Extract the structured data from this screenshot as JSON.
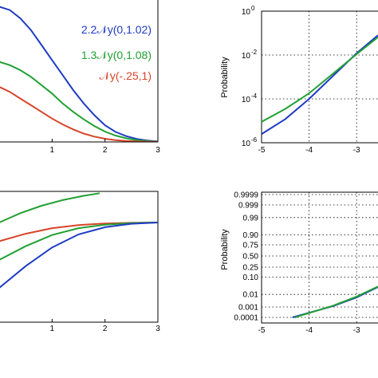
{
  "chart_data": [
    {
      "type": "line",
      "panel": "top-left",
      "x_ticks": [
        "1",
        "2",
        "3"
      ],
      "xlim": [
        0,
        3
      ],
      "legend_entries": [
        "2.2𝒩y(0,1.02)",
        "1.3𝒩y(0,1.08)",
        "𝒩y(-.25,1)"
      ],
      "legend_placement": "top-right",
      "series": [
        {
          "name": "2.2𝒩y(0,1.02)",
          "color": "#1f3cc4",
          "x": [
            0,
            0.2,
            0.4,
            0.6,
            0.8,
            1.0,
            1.2,
            1.4,
            1.6,
            1.8,
            2.0,
            2.2,
            2.4,
            2.6,
            2.8,
            3.0
          ],
          "y": [
            0.81,
            0.79,
            0.74,
            0.67,
            0.58,
            0.49,
            0.4,
            0.31,
            0.23,
            0.16,
            0.1,
            0.06,
            0.035,
            0.018,
            0.008,
            0.003
          ]
        },
        {
          "name": "1.3𝒩y(0,1.08)",
          "color": "#22a033",
          "x": [
            0,
            0.2,
            0.4,
            0.6,
            0.8,
            1.0,
            1.2,
            1.4,
            1.6,
            1.8,
            2.0,
            2.2,
            2.4,
            2.6,
            2.8,
            3.0
          ],
          "y": [
            0.48,
            0.46,
            0.43,
            0.39,
            0.34,
            0.29,
            0.23,
            0.18,
            0.135,
            0.095,
            0.062,
            0.038,
            0.022,
            0.011,
            0.005,
            0.002
          ]
        },
        {
          "name": "𝒩y(-.25,1)",
          "color": "#d6452a",
          "x": [
            0,
            0.2,
            0.4,
            0.6,
            0.8,
            1.0,
            1.2,
            1.4,
            1.6,
            1.8,
            2.0,
            2.2,
            2.4,
            2.6,
            2.8,
            3.0
          ],
          "y": [
            0.33,
            0.3,
            0.26,
            0.22,
            0.18,
            0.14,
            0.105,
            0.075,
            0.05,
            0.032,
            0.019,
            0.011,
            0.006,
            0.003,
            0.0015,
            0.0007
          ]
        }
      ]
    },
    {
      "type": "line",
      "panel": "top-right",
      "ylabel": "Probability",
      "x_ticks": [
        "-5",
        "-4",
        "-3"
      ],
      "y_ticks": [
        "10",
        "10",
        "10",
        "10"
      ],
      "y_tick_exponents": [
        "0",
        "-2",
        "-4",
        "-6"
      ],
      "y_scale": "log",
      "xlim": [
        -5,
        -2.55
      ],
      "ylim": [
        1e-06,
        1
      ],
      "grid": true,
      "series": [
        {
          "color": "#1f3cc4",
          "x": [
            -5,
            -4.5,
            -4,
            -3.5,
            -3,
            -2.55
          ],
          "y": [
            2.5e-06,
            1.2e-05,
            0.0001,
            0.0011,
            0.012,
            0.08
          ]
        },
        {
          "color": "#22a033",
          "x": [
            -5,
            -4.5,
            -4,
            -3.5,
            -3,
            -2.55
          ],
          "y": [
            9e-06,
            3.5e-05,
            0.00018,
            0.0014,
            0.011,
            0.065
          ]
        }
      ]
    },
    {
      "type": "line",
      "panel": "bottom-left",
      "x_ticks": [
        "1",
        "2",
        "3"
      ],
      "xlim": [
        0,
        3
      ],
      "ylim": [
        -1.6,
        0.5
      ],
      "series": [
        {
          "color": "#22a033",
          "x": [
            0,
            0.4,
            0.8,
            1.2,
            1.6,
            1.9
          ],
          "y": [
            0.0,
            0.15,
            0.27,
            0.36,
            0.43,
            0.47
          ]
        },
        {
          "color": "#d6452a",
          "x": [
            0,
            0.5,
            1.0,
            1.5,
            2.0,
            2.5,
            3.0
          ],
          "y": [
            -0.3,
            -0.18,
            -0.09,
            -0.04,
            -0.015,
            -0.005,
            0.0
          ]
        },
        {
          "color": "#22a033",
          "x": [
            0,
            0.5,
            1.0,
            1.5,
            2.0,
            2.5,
            3.0
          ],
          "y": [
            -0.6,
            -0.38,
            -0.2,
            -0.09,
            -0.035,
            -0.01,
            0.0
          ]
        },
        {
          "color": "#1f3cc4",
          "x": [
            0,
            0.5,
            1.0,
            1.5,
            2.0,
            2.5,
            3.0
          ],
          "y": [
            -1.05,
            -0.7,
            -0.4,
            -0.19,
            -0.075,
            -0.02,
            0.0
          ]
        }
      ]
    },
    {
      "type": "line",
      "panel": "bottom-right",
      "ylabel": "Probability",
      "x_ticks": [
        "-5",
        "-4",
        "-3"
      ],
      "y_ticks": [
        "0.9999",
        "0.999",
        "0.99",
        "0.90",
        "0.75",
        "0.50",
        "0.25",
        "0.10",
        "0.01",
        "0.001",
        "0.0001"
      ],
      "y_scale": "normal-probability",
      "xlim": [
        -5,
        -2.55
      ],
      "grid": true,
      "series": [
        {
          "color": "#1f3cc4",
          "x": [
            -4.35,
            -3.5,
            -3,
            -2.55
          ],
          "y": [
            0.0001,
            0.0012,
            0.006,
            0.03
          ]
        },
        {
          "color": "#22a033",
          "x": [
            -4.3,
            -3.5,
            -3,
            -2.55
          ],
          "y": [
            0.0001,
            0.0013,
            0.007,
            0.032
          ]
        }
      ]
    }
  ]
}
